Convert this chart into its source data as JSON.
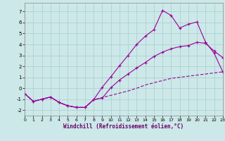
{
  "xlabel": "Windchill (Refroidissement éolien,°C)",
  "background_color": "#cce8e8",
  "grid_color": "#aacccc",
  "line_color": "#990099",
  "xlim": [
    0,
    23
  ],
  "ylim": [
    -2.5,
    7.8
  ],
  "xticks": [
    0,
    1,
    2,
    3,
    4,
    5,
    6,
    7,
    8,
    9,
    10,
    11,
    12,
    13,
    14,
    15,
    16,
    17,
    18,
    19,
    20,
    21,
    22,
    23
  ],
  "yticks": [
    -2,
    -1,
    0,
    1,
    2,
    3,
    4,
    5,
    6,
    7
  ],
  "line_jagged_y": [
    -0.5,
    -1.2,
    -1.0,
    -0.8,
    -1.3,
    -1.6,
    -1.75,
    -1.75,
    -1.05,
    0.1,
    1.05,
    2.05,
    3.0,
    4.0,
    4.75,
    5.35,
    7.1,
    6.65,
    5.5,
    5.85,
    6.05,
    4.2,
    3.2,
    1.5
  ],
  "line_mid_y": [
    -0.5,
    -1.2,
    -1.0,
    -0.8,
    -1.3,
    -1.6,
    -1.75,
    -1.75,
    -1.05,
    -0.9,
    0.05,
    0.75,
    1.3,
    1.85,
    2.35,
    2.9,
    3.3,
    3.6,
    3.8,
    3.9,
    4.2,
    4.1,
    3.4,
    2.8
  ],
  "line_bottom_y": [
    -0.5,
    -1.2,
    -1.0,
    -0.8,
    -1.3,
    -1.6,
    -1.75,
    -1.75,
    -1.05,
    -0.85,
    -0.65,
    -0.45,
    -0.25,
    0.0,
    0.3,
    0.5,
    0.7,
    0.9,
    1.0,
    1.1,
    1.2,
    1.3,
    1.4,
    1.5
  ]
}
